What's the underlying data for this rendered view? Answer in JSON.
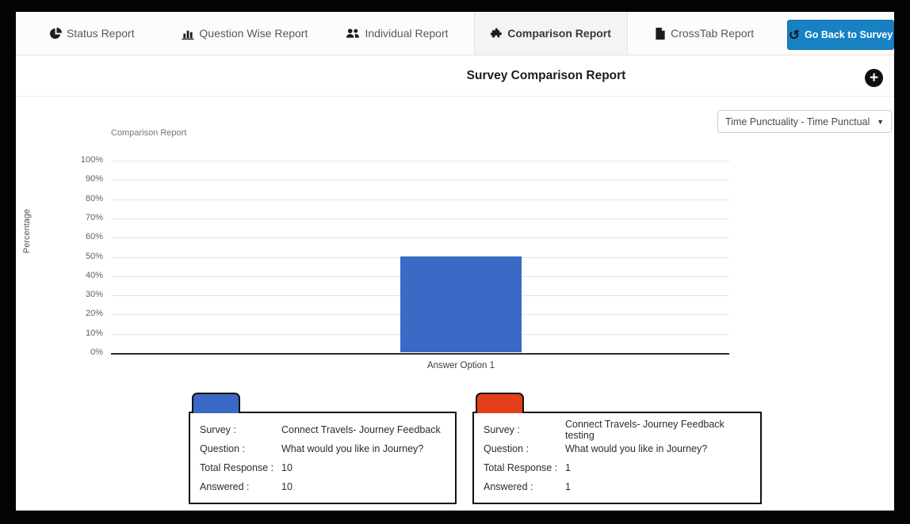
{
  "frame_color": "#040404",
  "nav": {
    "tabs": [
      {
        "label": "Status Report",
        "icon": "pie-chart-icon"
      },
      {
        "label": "Question Wise Report",
        "icon": "bar-chart-icon"
      },
      {
        "label": "Individual Report",
        "icon": "users-icon"
      },
      {
        "label": "Comparison Report",
        "icon": "puzzle-piece-icon",
        "active": true
      },
      {
        "label": "CrossTab Report",
        "icon": "document-icon"
      }
    ],
    "back_button": {
      "label": "Go Back to Survey",
      "icon": "undo-icon",
      "glyph": "↺",
      "color": "#1781c4"
    }
  },
  "header": {
    "title": "Survey Comparison Report",
    "add_icon": "plus-circle-icon",
    "add_glyph": "+"
  },
  "filter": {
    "selected": "Time Punctuality - Time Punctual",
    "caret": "▼"
  },
  "chart_data": {
    "type": "bar",
    "title": "Comparison Report",
    "xlabel": "Answer Option 1",
    "ylabel": "Percentage",
    "categories": [
      "Answer Option 1"
    ],
    "series": [
      {
        "name": "Connect Travels- Journey Feedback",
        "values": [
          50
        ],
        "color": "#3b69c6"
      },
      {
        "name": "Connect Travels- Journey Feedback testing",
        "values": [
          0
        ],
        "color": "#e43e1b"
      }
    ],
    "ylim": [
      0,
      100
    ],
    "ytick_step": 10,
    "yticks": [
      "100%",
      "90%",
      "80%",
      "70%",
      "60%",
      "50%",
      "40%",
      "30%",
      "20%",
      "10%",
      "0%"
    ],
    "grid": true,
    "legend_position": "bottom-cards"
  },
  "legend": [
    {
      "color": "#3b69c6",
      "rows": [
        {
          "label": "Survey :",
          "value": "Connect Travels- Journey Feedback"
        },
        {
          "label": "Question :",
          "value": "What would you like in Journey?"
        },
        {
          "label": "Total Response :",
          "value": "10"
        },
        {
          "label": "Answered :",
          "value": "10"
        }
      ]
    },
    {
      "color": "#e43e1b",
      "rows": [
        {
          "label": "Survey :",
          "value": "Connect Travels- Journey Feedback testing"
        },
        {
          "label": "Question :",
          "value": "What would you like in Journey?"
        },
        {
          "label": "Total Response :",
          "value": "1"
        },
        {
          "label": "Answered :",
          "value": "1"
        }
      ]
    }
  ]
}
